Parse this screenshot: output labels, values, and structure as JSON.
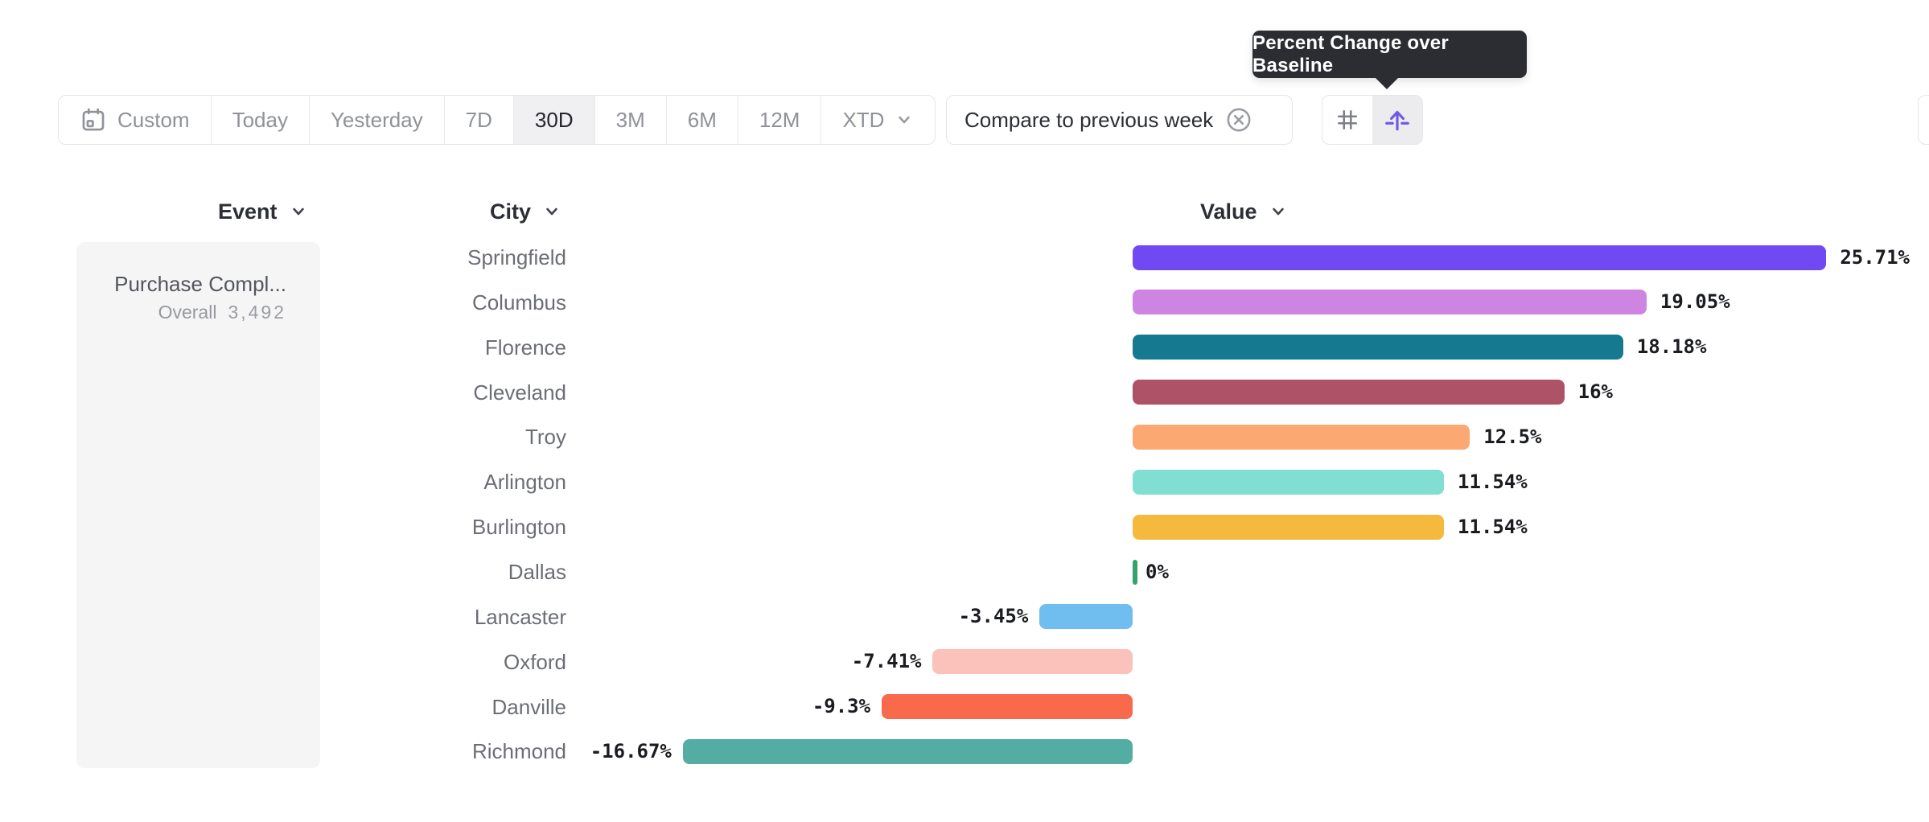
{
  "tooltip": {
    "text": "Percent Change over Baseline"
  },
  "toolbar": {
    "date_ranges": [
      {
        "label": "Custom",
        "selected": false,
        "icon": "calendar-icon"
      },
      {
        "label": "Today",
        "selected": false
      },
      {
        "label": "Yesterday",
        "selected": false
      },
      {
        "label": "7D",
        "selected": false
      },
      {
        "label": "30D",
        "selected": true
      },
      {
        "label": "3M",
        "selected": false
      },
      {
        "label": "6M",
        "selected": false
      },
      {
        "label": "12M",
        "selected": false
      },
      {
        "label": "XTD",
        "selected": false,
        "icon": "chevron-down-icon"
      }
    ],
    "compare_button": {
      "label": "Compare to previous week",
      "icon": "x-circle-icon"
    },
    "view_toggle": {
      "options": [
        {
          "icon": "grid-icon",
          "selected": false
        },
        {
          "icon": "baseline-arrow-icon",
          "selected": true
        }
      ]
    },
    "accent_color": "#6F58E9"
  },
  "columns": {
    "event": "Event",
    "city": "City",
    "value": "Value"
  },
  "event_card": {
    "title": "Purchase Compl...",
    "overall_label": "Overall",
    "overall_value": "3,492"
  },
  "chart_data": {
    "type": "bar",
    "orientation": "horizontal",
    "title": "Percent Change over Baseline",
    "unit": "%",
    "baseline": 0,
    "categories": [
      "Springfield",
      "Columbus",
      "Florence",
      "Cleveland",
      "Troy",
      "Arlington",
      "Burlington",
      "Dallas",
      "Lancaster",
      "Oxford",
      "Danville",
      "Richmond"
    ],
    "values": [
      25.71,
      19.05,
      18.18,
      16,
      12.5,
      11.54,
      11.54,
      0,
      -3.45,
      -7.41,
      -9.3,
      -16.67
    ],
    "value_labels": [
      "25.71%",
      "19.05%",
      "18.18%",
      "16%",
      "12.5%",
      "11.54%",
      "11.54%",
      "0%",
      "-3.45%",
      "-7.41%",
      "-9.3%",
      "-16.67%"
    ],
    "colors": [
      "#7149F2",
      "#CE84E1",
      "#15798F",
      "#AE5267",
      "#FBA873",
      "#81DED2",
      "#F4B93D",
      "#35A16B",
      "#70BDF0",
      "#FBC2BC",
      "#F9694C",
      "#54ADA2"
    ]
  }
}
